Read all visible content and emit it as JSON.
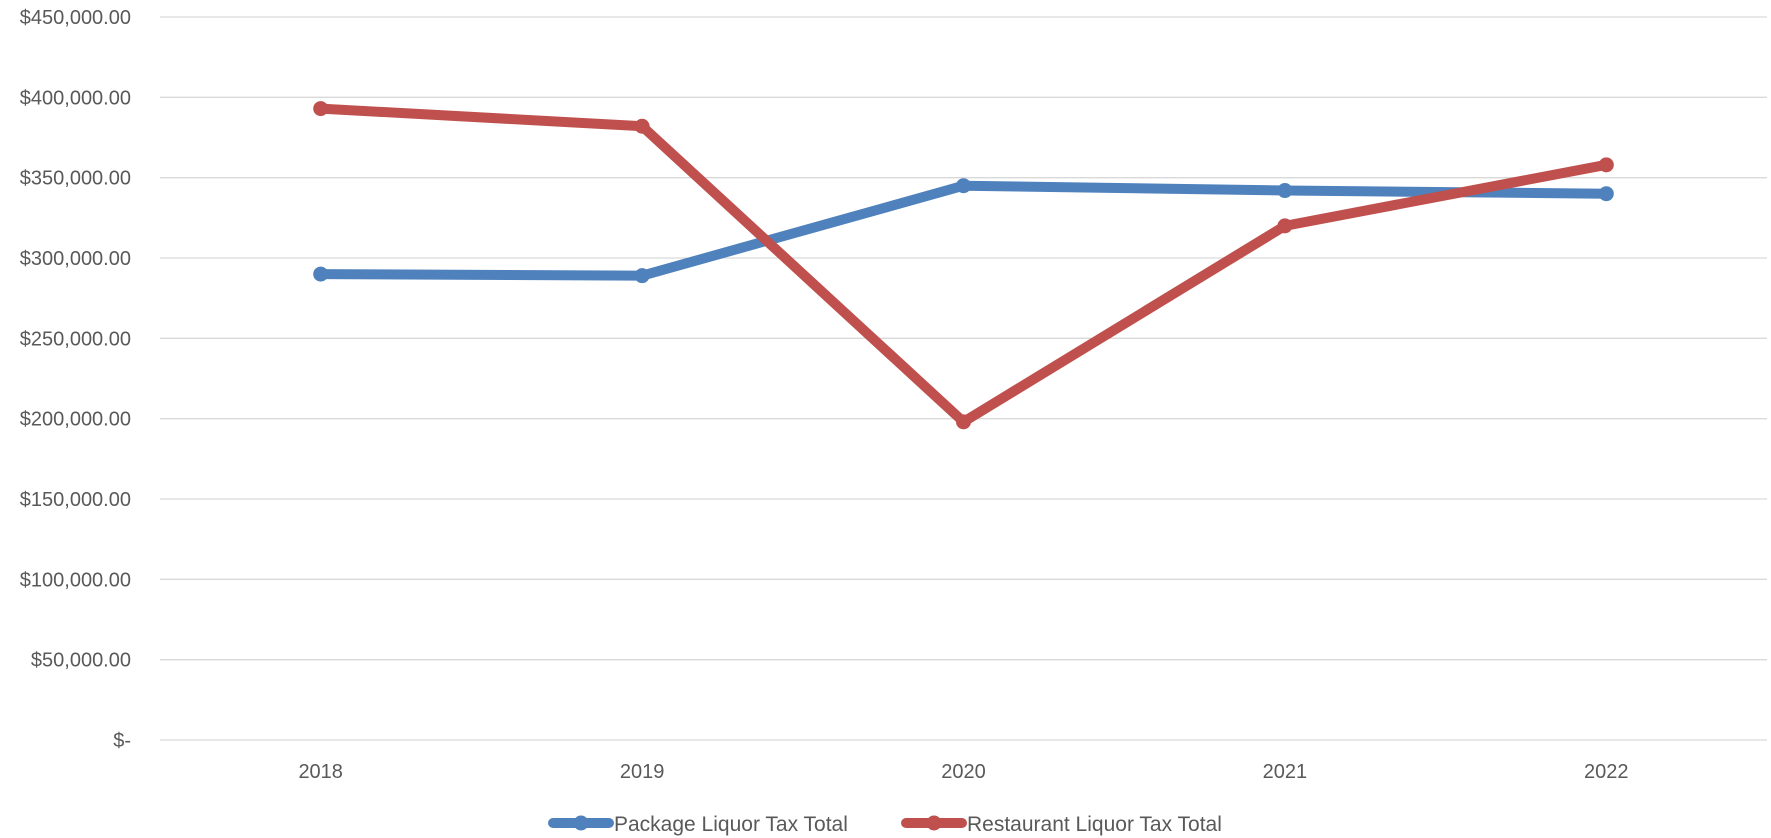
{
  "chart_data": {
    "type": "line",
    "title": "",
    "xlabel": "",
    "ylabel": "",
    "categories": [
      "2018",
      "2019",
      "2020",
      "2021",
      "2022"
    ],
    "ylim": [
      0,
      450000
    ],
    "ytick_step": 50000,
    "ytick_labels": [
      "$-",
      "$50,000.00",
      "$100,000.00",
      "$150,000.00",
      "$200,000.00",
      "$250,000.00",
      "$300,000.00",
      "$350,000.00",
      "$400,000.00",
      "$450,000.00"
    ],
    "grid": true,
    "legend_position": "bottom",
    "series": [
      {
        "name": "Package Liquor Tax Total",
        "color": "#4f81bd",
        "values": [
          290000,
          289000,
          345000,
          342000,
          340000
        ]
      },
      {
        "name": "Restaurant Liquor Tax Total",
        "color": "#c0504d",
        "values": [
          393000,
          382000,
          198000,
          320000,
          358000
        ]
      }
    ]
  }
}
